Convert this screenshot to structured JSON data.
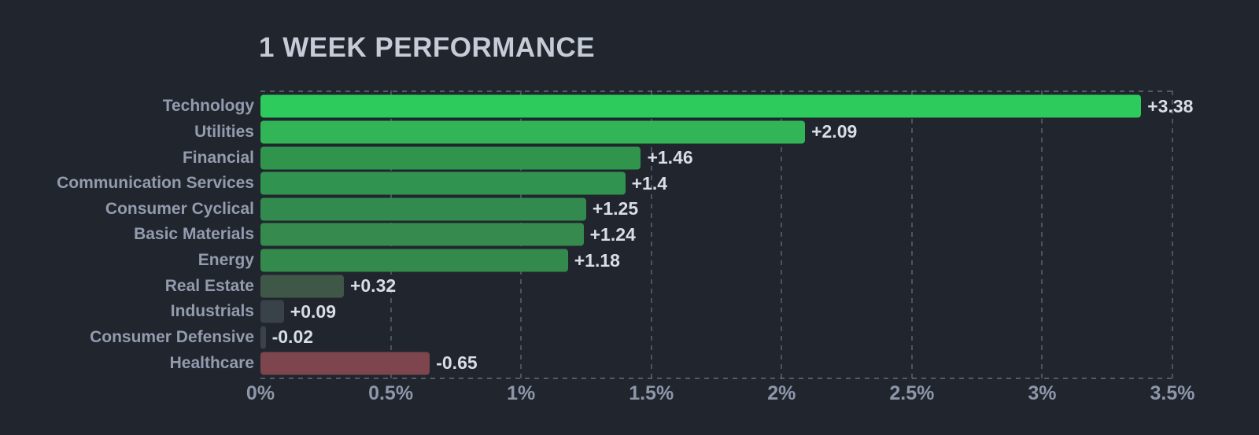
{
  "title": "1 WEEK PERFORMANCE",
  "colors": {
    "background": "#21252e",
    "title": "#c5cbd7",
    "category_label": "#939cae",
    "value_label": "#d9dde6",
    "tick_label": "#8d97a9",
    "grid": "rgba(142,152,172,0.42)",
    "positive_bright": "#2dcb5c",
    "negative": "#7d454d"
  },
  "chart_data": {
    "type": "bar",
    "orientation": "horizontal",
    "title": "1 WEEK PERFORMANCE",
    "unit": "percent",
    "xlabel": "",
    "ylabel": "",
    "xlim": [
      0,
      3.5
    ],
    "grid": {
      "vertical_dashed": true,
      "top_border_dashed": true,
      "bottom_border_dashed": true
    },
    "x_ticks": [
      {
        "value": 0,
        "label": "0%"
      },
      {
        "value": 0.5,
        "label": "0.5%"
      },
      {
        "value": 1,
        "label": "1%"
      },
      {
        "value": 1.5,
        "label": "1.5%"
      },
      {
        "value": 2,
        "label": "2%"
      },
      {
        "value": 2.5,
        "label": "2.5%"
      },
      {
        "value": 3,
        "label": "3%"
      },
      {
        "value": 3.5,
        "label": "3.5%"
      }
    ],
    "bars": [
      {
        "category": "Technology",
        "value": 3.38,
        "label": "+3.38",
        "color": "#2dcb5c"
      },
      {
        "category": "Utilities",
        "value": 2.09,
        "label": "+2.09",
        "color": "#32b557"
      },
      {
        "category": "Financial",
        "value": 1.46,
        "label": "+1.46",
        "color": "#30944d"
      },
      {
        "category": "Communication Services",
        "value": 1.4,
        "label": "+1.4",
        "color": "#319350"
      },
      {
        "category": "Consumer Cyclical",
        "value": 1.25,
        "label": "+1.25",
        "color": "#338a4e"
      },
      {
        "category": "Basic Materials",
        "value": 1.24,
        "label": "+1.24",
        "color": "#378a4d"
      },
      {
        "category": "Energy",
        "value": 1.18,
        "label": "+1.18",
        "color": "#34894c"
      },
      {
        "category": "Real Estate",
        "value": 0.32,
        "label": "+0.32",
        "color": "#3e5747"
      },
      {
        "category": "Industrials",
        "value": 0.09,
        "label": "+0.09",
        "color": "#394149"
      },
      {
        "category": "Consumer Defensive",
        "value": -0.02,
        "label": "-0.02",
        "color": "#3c424c"
      },
      {
        "category": "Healthcare",
        "value": -0.65,
        "label": "-0.65",
        "color": "#7d454d"
      }
    ]
  }
}
